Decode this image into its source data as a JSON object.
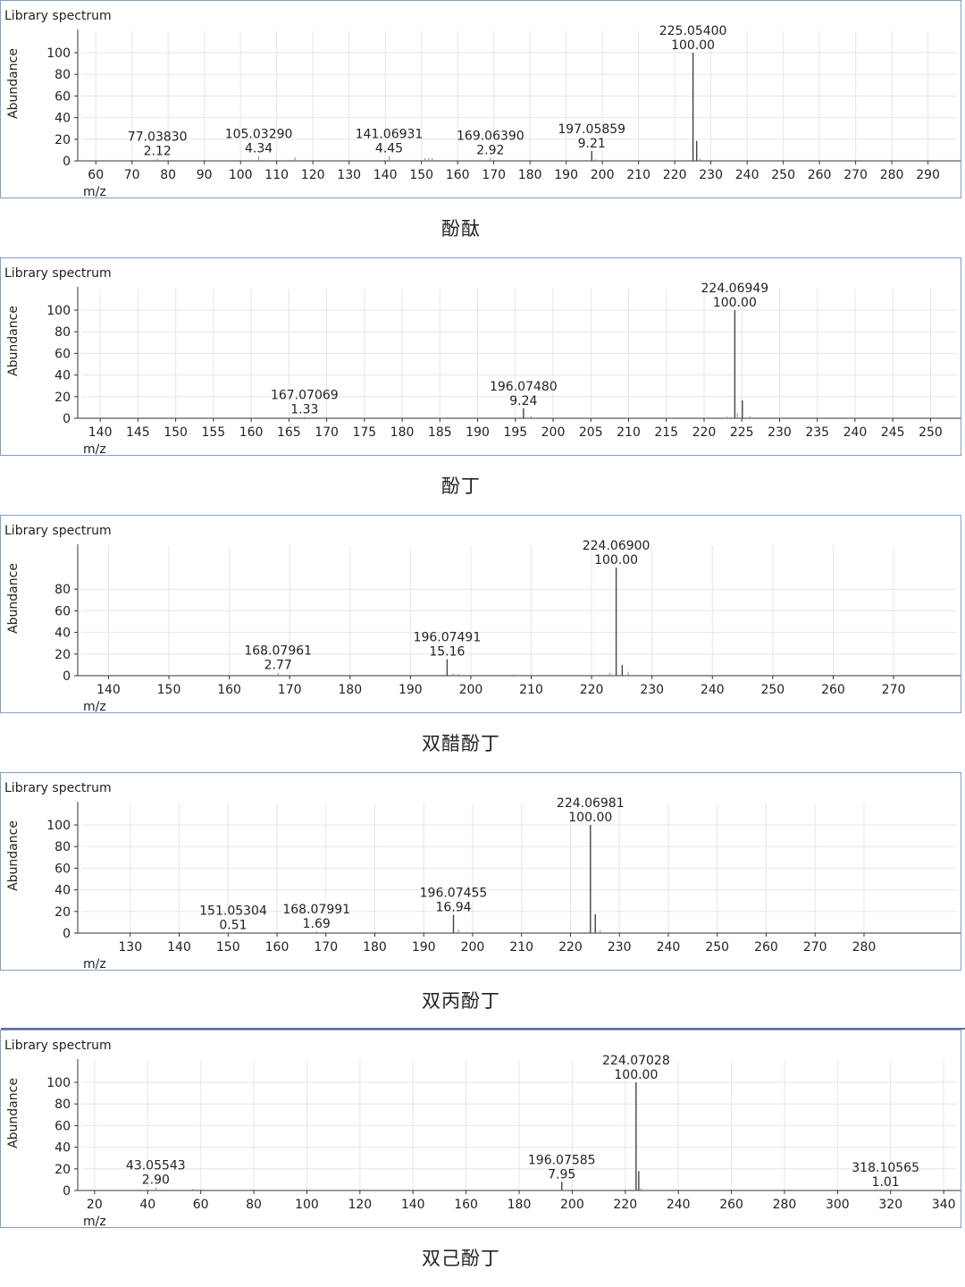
{
  "chart_data": [
    {
      "type": "bar",
      "caption": "酚酞",
      "panel_title": "Library spectrum",
      "xlabel": "m/z",
      "ylabel": "Abundance",
      "xlim": [
        56,
        298
      ],
      "ylim": [
        0,
        100
      ],
      "xticks": [
        60,
        70,
        80,
        90,
        100,
        110,
        120,
        130,
        140,
        150,
        160,
        170,
        180,
        190,
        200,
        210,
        220,
        230,
        240,
        250,
        260,
        270,
        280,
        290
      ],
      "yticks": [
        0,
        20,
        40,
        60,
        80,
        100
      ],
      "peaks": [
        {
          "mz": 77.0383,
          "abundance": 2.12,
          "label_mz": "77.03830",
          "label_ab": "2.12"
        },
        {
          "mz": 105.0329,
          "abundance": 4.34,
          "label_mz": "105.03290",
          "label_ab": "4.34"
        },
        {
          "mz": 115.05,
          "abundance": 3.5
        },
        {
          "mz": 141.06931,
          "abundance": 4.45,
          "label_mz": "141.06931",
          "label_ab": "4.45"
        },
        {
          "mz": 151.0,
          "abundance": 2.5
        },
        {
          "mz": 152.0,
          "abundance": 2.5
        },
        {
          "mz": 153.0,
          "abundance": 2.5
        },
        {
          "mz": 169.0639,
          "abundance": 2.92,
          "label_mz": "169.06390",
          "label_ab": "2.92"
        },
        {
          "mz": 197.05859,
          "abundance": 9.21,
          "label_mz": "197.05859",
          "label_ab": "9.21"
        },
        {
          "mz": 198.06,
          "abundance": 1.5
        },
        {
          "mz": 225.054,
          "abundance": 100.0,
          "label_mz": "225.05400",
          "label_ab": "100.00"
        },
        {
          "mz": 226.06,
          "abundance": 18.5
        },
        {
          "mz": 227.06,
          "abundance": 2.2
        }
      ]
    },
    {
      "type": "bar",
      "caption": "酚丁",
      "panel_title": "Library spectrum",
      "xlabel": "m/z",
      "ylabel": "Abundance",
      "xlim": [
        137.5,
        253.5
      ],
      "ylim": [
        0,
        100
      ],
      "xticks": [
        140,
        145,
        150,
        155,
        160,
        165,
        170,
        175,
        180,
        185,
        190,
        195,
        200,
        205,
        210,
        215,
        220,
        225,
        230,
        235,
        240,
        245,
        250
      ],
      "yticks": [
        0,
        20,
        40,
        60,
        80,
        100
      ],
      "peaks": [
        {
          "mz": 167.07069,
          "abundance": 1.33,
          "label_mz": "167.07069",
          "label_ab": "1.33"
        },
        {
          "mz": 196.0748,
          "abundance": 9.24,
          "label_mz": "196.07480",
          "label_ab": "9.24"
        },
        {
          "mz": 197.08,
          "abundance": 2.0
        },
        {
          "mz": 223.06,
          "abundance": 1.5
        },
        {
          "mz": 224.06949,
          "abundance": 100.0,
          "label_mz": "224.06949",
          "label_ab": "100.00"
        },
        {
          "mz": 224.4,
          "abundance": 4.5
        },
        {
          "mz": 225.07,
          "abundance": 16.5
        },
        {
          "mz": 226.08,
          "abundance": 2.0
        }
      ]
    },
    {
      "type": "bar",
      "caption": "双醋酚丁",
      "panel_title": "Library spectrum",
      "xlabel": "m/z",
      "ylabel": "Abundance",
      "xlim": [
        135.5,
        280.5
      ],
      "ylim": [
        0,
        100
      ],
      "xticks": [
        140,
        150,
        160,
        170,
        180,
        190,
        200,
        210,
        220,
        230,
        240,
        250,
        260,
        270
      ],
      "yticks": [
        0,
        20,
        40,
        60,
        80
      ],
      "peaks": [
        {
          "mz": 168.07961,
          "abundance": 2.77,
          "label_mz": "168.07961",
          "label_ab": "2.77"
        },
        {
          "mz": 196.07491,
          "abundance": 15.16,
          "label_mz": "196.07491",
          "label_ab": "15.16"
        },
        {
          "mz": 197.08,
          "abundance": 2.0
        },
        {
          "mz": 198.0,
          "abundance": 1.5
        },
        {
          "mz": 207.0,
          "abundance": 1.2
        },
        {
          "mz": 223.0,
          "abundance": 2.5
        },
        {
          "mz": 224.069,
          "abundance": 100.0,
          "label_mz": "224.06900",
          "label_ab": "100.00"
        },
        {
          "mz": 225.07,
          "abundance": 10.0
        },
        {
          "mz": 226.07,
          "abundance": 3.5
        }
      ]
    },
    {
      "type": "bar",
      "caption": "双丙酚丁",
      "panel_title": "Library spectrum",
      "xlabel": "m/z",
      "ylabel": "Abundance",
      "xlim": [
        120,
        299
      ],
      "ylim": [
        0,
        100
      ],
      "xticks": [
        130,
        140,
        150,
        160,
        170,
        180,
        190,
        200,
        210,
        220,
        230,
        240,
        250,
        260,
        270,
        280
      ],
      "yticks": [
        0,
        20,
        40,
        60,
        80,
        100
      ],
      "peaks": [
        {
          "mz": 151.05304,
          "abundance": 0.51,
          "label_mz": "151.05304",
          "label_ab": "0.51"
        },
        {
          "mz": 168.07991,
          "abundance": 1.69,
          "label_mz": "168.07991",
          "label_ab": "1.69"
        },
        {
          "mz": 178.0,
          "abundance": 1.0
        },
        {
          "mz": 196.07455,
          "abundance": 16.94,
          "label_mz": "196.07455",
          "label_ab": "16.94"
        },
        {
          "mz": 197.08,
          "abundance": 3.5
        },
        {
          "mz": 207.0,
          "abundance": 1.0
        },
        {
          "mz": 223.0,
          "abundance": 1.0
        },
        {
          "mz": 224.06981,
          "abundance": 100.0,
          "label_mz": "224.06981",
          "label_ab": "100.00"
        },
        {
          "mz": 225.07,
          "abundance": 17.5
        },
        {
          "mz": 226.07,
          "abundance": 2.5
        }
      ]
    },
    {
      "type": "bar",
      "caption": "双己酚丁",
      "panel_title": "Library spectrum",
      "xlabel": "m/z",
      "ylabel": "Abundance",
      "xlim": [
        15,
        345
      ],
      "ylim": [
        0,
        100
      ],
      "xticks": [
        20,
        40,
        60,
        80,
        100,
        120,
        140,
        160,
        180,
        200,
        220,
        240,
        260,
        280,
        300,
        320,
        340
      ],
      "yticks": [
        0,
        20,
        40,
        60,
        80,
        100
      ],
      "peaks": [
        {
          "mz": 43.05543,
          "abundance": 2.9,
          "label_mz": "43.05543",
          "label_ab": "2.90"
        },
        {
          "mz": 57.0,
          "abundance": 1.5
        },
        {
          "mz": 196.07585,
          "abundance": 7.95,
          "label_mz": "196.07585",
          "label_ab": "7.95"
        },
        {
          "mz": 224.07028,
          "abundance": 100.0,
          "label_mz": "224.07028",
          "label_ab": "100.00"
        },
        {
          "mz": 225.07,
          "abundance": 18.0
        },
        {
          "mz": 226.0,
          "abundance": 2.0
        },
        {
          "mz": 318.10565,
          "abundance": 1.01,
          "label_mz": "318.10565",
          "label_ab": "1.01"
        }
      ]
    }
  ]
}
